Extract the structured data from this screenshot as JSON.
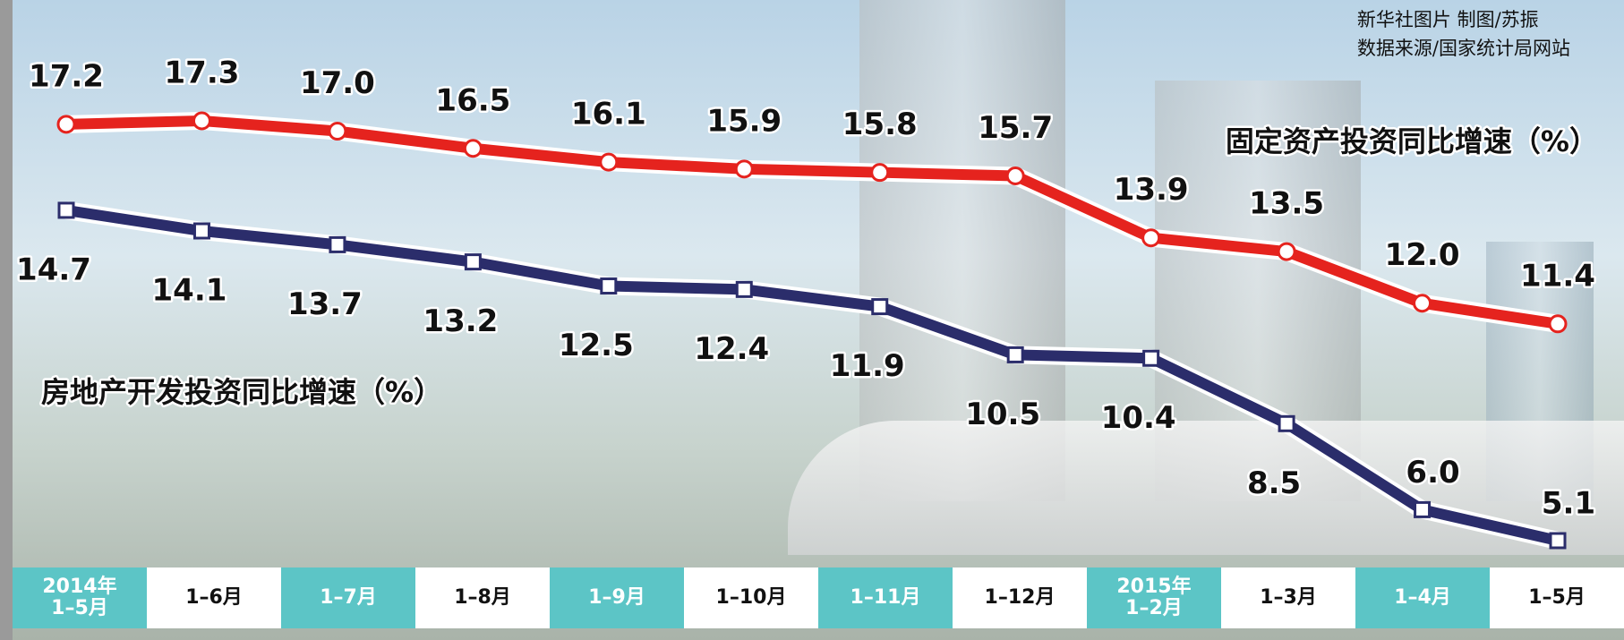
{
  "chart_data": {
    "type": "line",
    "credit": [
      "新华社图片 制图/苏振",
      "数据来源/国家统计局网站"
    ],
    "categories": [
      "2014年\n1–5月",
      "1–6月",
      "1–7月",
      "1–8月",
      "1–9月",
      "1–10月",
      "1–11月",
      "1–12月",
      "2015年\n1–2月",
      "1–3月",
      "1–4月",
      "1–5月"
    ],
    "series": [
      {
        "name": "固定资产投资同比增速（%）",
        "color": "#e5231e",
        "marker": "circle",
        "values": [
          17.2,
          17.3,
          17.0,
          16.5,
          16.1,
          15.9,
          15.8,
          15.7,
          13.9,
          13.5,
          12.0,
          11.4
        ],
        "value_labels": [
          "17.2",
          "17.3",
          "17.0",
          "16.5",
          "16.1",
          "15.9",
          "15.8",
          "15.7",
          "13.9",
          "13.5",
          "12.0",
          "11.4"
        ]
      },
      {
        "name": "房地产开发投资同比增速（%）",
        "color": "#2b2d6b",
        "marker": "square",
        "values": [
          14.7,
          14.1,
          13.7,
          13.2,
          12.5,
          12.4,
          11.9,
          10.5,
          10.4,
          8.5,
          6.0,
          5.1
        ],
        "value_labels": [
          "14.7",
          "14.1",
          "13.7",
          "13.2",
          "12.5",
          "12.4",
          "11.9",
          "10.5",
          "10.4",
          "8.5",
          "6.0",
          "5.1"
        ]
      }
    ]
  }
}
